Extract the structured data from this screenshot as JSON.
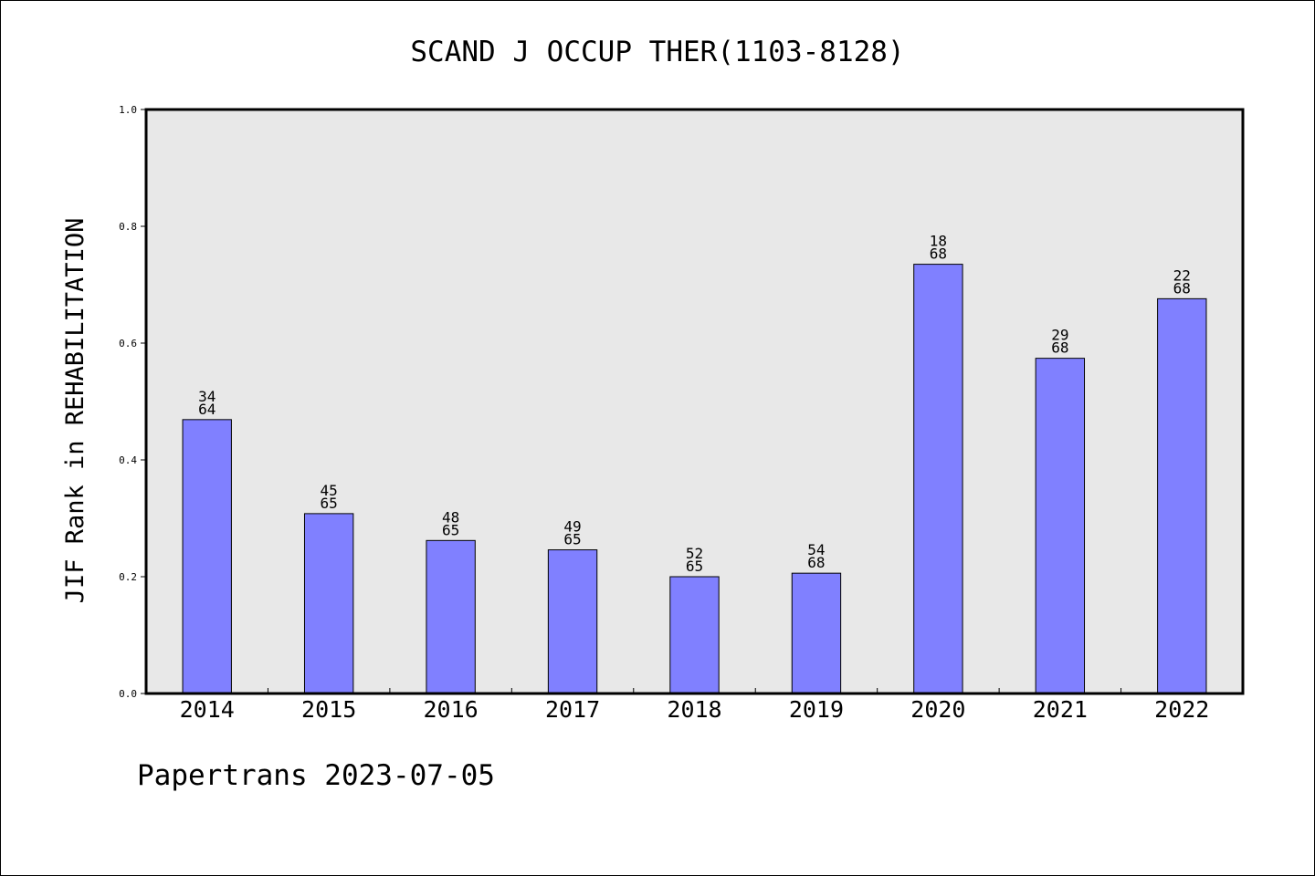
{
  "chart_data": {
    "type": "bar",
    "title": "SCAND J OCCUP THER(1103-8128)",
    "xlabel": "",
    "ylabel": "JIF Rank in REHABILITATION",
    "ylim": [
      0,
      1.0
    ],
    "yticks": [
      "0.0",
      "0.2",
      "0.4",
      "0.6",
      "0.8",
      "1.0"
    ],
    "grid": false,
    "categories": [
      "2014",
      "2015",
      "2016",
      "2017",
      "2018",
      "2019",
      "2020",
      "2021",
      "2022"
    ],
    "values": [
      0.469,
      0.308,
      0.262,
      0.246,
      0.2,
      0.206,
      0.735,
      0.574,
      0.676
    ],
    "rank": [
      "34",
      "45",
      "48",
      "49",
      "52",
      "54",
      "18",
      "29",
      "22"
    ],
    "total": [
      "64",
      "65",
      "65",
      "65",
      "65",
      "68",
      "68",
      "68",
      "68"
    ],
    "colors": {
      "bar": "#8080ff",
      "plot_bg": "#e8e8e8",
      "axis": "#000000"
    }
  },
  "footer": "Papertrans 2023-07-05"
}
